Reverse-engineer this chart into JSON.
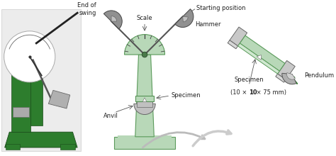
{
  "bg_color": "#ffffff",
  "green_color": "#2d7d2d",
  "light_green": "#b8d8b8",
  "lighter_green": "#d0e8d0",
  "gray_color": "#a0a0a0",
  "dark_gray": "#555555",
  "light_gray": "#c8c8c8",
  "labels": {
    "scale": "Scale",
    "starting_position": "Starting position",
    "hammer": "Hammer",
    "end_of_swing": "End of\nswing",
    "anvil": "Anvil",
    "specimen_mid": "Specimen",
    "specimen_detail": "Specimen\n(10 × 10 × 75 mm)",
    "pendulum": "Pendulum"
  },
  "font_size": 6.0,
  "photo_bg": "#ececec",
  "machine_green": "#2d7d2d"
}
